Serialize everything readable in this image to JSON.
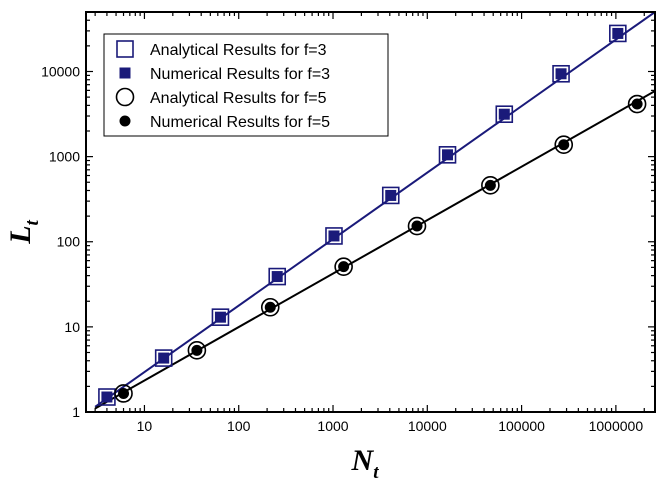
{
  "chart_data": {
    "type": "scatter",
    "xlabel": "N",
    "xlabel_sub": "t",
    "ylabel": "L",
    "ylabel_sub": "t",
    "xscale": "log",
    "yscale": "log",
    "xlim": [
      2.4,
      2600000
    ],
    "ylim": [
      1,
      50000
    ],
    "xticks": [
      10,
      100,
      1000,
      10000,
      100000,
      1000000
    ],
    "xtick_labels": [
      "10",
      "100",
      "1000",
      "10000",
      "100000",
      "1000000"
    ],
    "yticks": [
      1,
      10,
      100,
      1000,
      10000
    ],
    "ytick_labels": [
      "1",
      "10",
      "100",
      "1000",
      "10000"
    ],
    "grid": false,
    "legend_position": "top-left",
    "colors": {
      "f3": "#1a1a7a",
      "f5": "#000000"
    },
    "series": [
      {
        "name": "Analytical Results for f=3",
        "marker": "open-square",
        "color": "#1a1a7a",
        "x": [
          4,
          16,
          64,
          256,
          1024,
          4096,
          16384,
          65536,
          262144,
          1048576
        ],
        "y": [
          1.5,
          4.3,
          13,
          39,
          117,
          350,
          1050,
          3150,
          9400,
          28000
        ]
      },
      {
        "name": "Numerical Results for f=3",
        "marker": "filled-square",
        "color": "#1a1a7a",
        "x": [
          4,
          16,
          64,
          256,
          1024,
          4096,
          16384,
          65536,
          262144,
          1048576
        ],
        "y": [
          1.5,
          4.3,
          13,
          39,
          117,
          350,
          1050,
          3150,
          9400,
          28000
        ]
      },
      {
        "name": "Analytical Results for f=5",
        "marker": "open-circle",
        "color": "#000000",
        "x": [
          6,
          36,
          216,
          1296,
          7776,
          46656,
          279936,
          1679616
        ],
        "y": [
          1.65,
          5.3,
          17,
          51,
          153,
          460,
          1380,
          4150
        ]
      },
      {
        "name": "Numerical Results for f=5",
        "marker": "filled-circle",
        "color": "#000000",
        "x": [
          6,
          36,
          216,
          1296,
          7776,
          46656,
          279936,
          1679616
        ],
        "y": [
          1.65,
          5.3,
          17,
          51,
          153,
          460,
          1380,
          4150
        ]
      }
    ],
    "fit_lines": [
      {
        "series": "f=3",
        "color": "#1a1a7a",
        "x": [
          3,
          2600000
        ],
        "y": [
          1.15,
          50000
        ]
      },
      {
        "series": "f=5",
        "color": "#000000",
        "x": [
          3,
          2600000
        ],
        "y": [
          1.1,
          5900
        ]
      }
    ]
  }
}
